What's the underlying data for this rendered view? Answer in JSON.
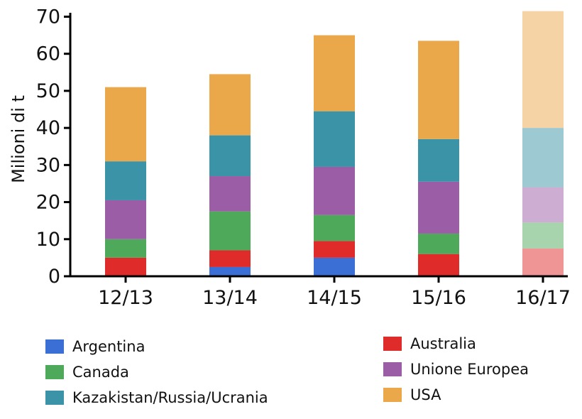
{
  "chart_data": {
    "type": "bar",
    "stacked": true,
    "title": "",
    "xlabel": "",
    "ylabel": "Milioni di t",
    "ylim": [
      0,
      70
    ],
    "yticks": [
      0,
      10,
      20,
      30,
      40,
      50,
      60,
      70
    ],
    "categories": [
      "12/13",
      "13/14",
      "14/15",
      "15/16",
      "16/17"
    ],
    "series": [
      {
        "name": "Argentina",
        "color": "#3b6fd6",
        "values": [
          0,
          2.5,
          5,
          0,
          0
        ]
      },
      {
        "name": "Australia",
        "color": "#e02b2b",
        "values": [
          5,
          4.5,
          4.5,
          6,
          7.5
        ]
      },
      {
        "name": "Canada",
        "color": "#4fa95a",
        "values": [
          5,
          10.5,
          7,
          5.5,
          7
        ]
      },
      {
        "name": "Unione Europea",
        "color": "#9b5ea6",
        "values": [
          10.5,
          9.5,
          13,
          14,
          9.5
        ]
      },
      {
        "name": "Kazakistan/Russia/Ucrania",
        "color": "#3b93a8",
        "values": [
          10.5,
          11,
          15,
          11.5,
          16
        ]
      },
      {
        "name": "USA",
        "color": "#eba84a",
        "values": [
          20,
          16.5,
          20.5,
          26.5,
          31.5
        ]
      }
    ],
    "faded_categories": [
      "16/17"
    ],
    "legend_placement": "bottom",
    "grid": false
  }
}
